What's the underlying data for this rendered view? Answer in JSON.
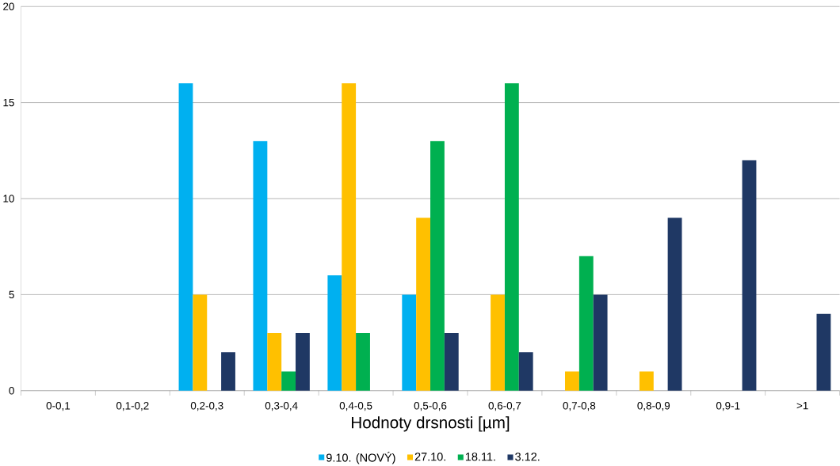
{
  "chart_data": {
    "type": "bar",
    "xlabel": "Hodnoty drsnosti [µm]",
    "categories": [
      "0-0,1",
      "0,1-0,2",
      "0,2-0,3",
      "0,3-0,4",
      "0,4-0,5",
      "0,5-0,6",
      "0,6-0,7",
      "0,7-0,8",
      "0,8-0,9",
      "0,9-1",
      ">1"
    ],
    "series": [
      {
        "name": "9.10. (NOVÝ)",
        "color": "#00b0f0",
        "values": [
          null,
          null,
          16,
          13,
          6,
          5,
          null,
          null,
          null,
          null,
          null
        ]
      },
      {
        "name": "27.10.",
        "color": "#ffc000",
        "values": [
          null,
          null,
          5,
          3,
          16,
          9,
          5,
          1,
          1,
          null,
          null
        ]
      },
      {
        "name": "18.11.",
        "color": "#00b050",
        "values": [
          null,
          null,
          null,
          1,
          3,
          13,
          16,
          7,
          null,
          null,
          null
        ]
      },
      {
        "name": "3.12.",
        "color": "#1f3864",
        "values": [
          null,
          null,
          2,
          3,
          null,
          3,
          2,
          5,
          9,
          12,
          4
        ]
      }
    ],
    "ylim": [
      0,
      20
    ],
    "yticks": [
      0,
      5,
      10,
      15,
      20
    ],
    "grid": "y",
    "legend": "bottom"
  }
}
